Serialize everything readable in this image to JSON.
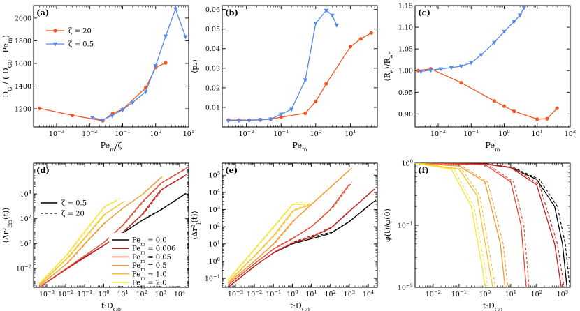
{
  "colors": {
    "zeta20": "#ee5522",
    "zeta05": "#5588e8",
    "pe": [
      "#000000",
      "#c41e1e",
      "#e34a30",
      "#f39a2e",
      "#fbc02d",
      "#f6e53a"
    ]
  },
  "chart_data": [
    {
      "panel": "(a)",
      "type": "line",
      "xscale": "log",
      "xlim": [
        0.0002,
        10
      ],
      "ylim": [
        1040,
        2110
      ],
      "xlabel": "Pe_m/ζ",
      "ylabel": "D_G / ( D_G0 · Pe_m)",
      "xticks": [
        0.001,
        0.01,
        0.1,
        1,
        10
      ],
      "xticklabels": [
        "10^-3",
        "10^-2",
        "10^-1",
        "10^0",
        "10^1"
      ],
      "yticks": [
        1200,
        1400,
        1600,
        1800,
        2000
      ],
      "yticklabels": [
        "1200",
        "1400",
        "1600",
        "1800",
        "2000"
      ],
      "legend": [
        "ζ = 20",
        "ζ = 0.5"
      ],
      "series": [
        {
          "name": "ζ = 20",
          "marker": "circle",
          "x": [
            0.0003,
            0.003,
            0.025,
            0.05,
            0.1,
            0.5,
            1,
            2
          ],
          "y": [
            1205,
            1142,
            1095,
            1160,
            1195,
            1385,
            1565,
            1605
          ]
        },
        {
          "name": "ζ = 0.5",
          "marker": "triangle",
          "x": [
            0.012,
            0.024,
            0.048,
            0.1,
            0.2,
            0.5,
            1,
            2,
            4,
            8
          ],
          "y": [
            1125,
            1100,
            1140,
            1192,
            1255,
            1350,
            1580,
            1840,
            2080,
            1835
          ]
        }
      ]
    },
    {
      "panel": "(b)",
      "type": "line",
      "xscale": "log",
      "xlim": [
        0.002,
        60
      ],
      "ylim": [
        0,
        0.062
      ],
      "xlabel": "Pe_m",
      "ylabel": "⟨p₂⟩",
      "xticks": [
        0.01,
        0.1,
        1,
        10
      ],
      "xticklabels": [
        "10^-2",
        "10^-1",
        "10^0",
        "10^1"
      ],
      "yticks": [
        0.01,
        0.02,
        0.03,
        0.04,
        0.05,
        0.06
      ],
      "yticklabels": [
        "0.01",
        "0.02",
        "0.03",
        "0.04",
        "0.05",
        "0.06"
      ],
      "series": [
        {
          "name": "ζ = 20",
          "marker": "circle",
          "x": [
            0.003,
            0.006,
            0.012,
            0.025,
            0.05,
            0.1,
            0.5,
            1,
            2,
            10,
            20,
            40
          ],
          "y": [
            0.0035,
            0.0035,
            0.0035,
            0.0037,
            0.004,
            0.005,
            0.007,
            0.013,
            0.022,
            0.041,
            0.045,
            0.048
          ]
        },
        {
          "name": "ζ = 0.5",
          "marker": "triangle",
          "x": [
            0.003,
            0.006,
            0.012,
            0.025,
            0.05,
            0.1,
            0.2,
            0.5,
            1,
            2,
            3,
            4
          ],
          "y": [
            0.0032,
            0.0032,
            0.0034,
            0.0036,
            0.004,
            0.0065,
            0.009,
            0.024,
            0.053,
            0.0595,
            0.057,
            0.052
          ]
        }
      ]
    },
    {
      "panel": "(c)",
      "type": "line",
      "xscale": "log",
      "xlim": [
        0.002,
        100
      ],
      "ylim": [
        0.87,
        1.15
      ],
      "xlabel": "Pe_m",
      "ylabel": "⟨R_e⟩/R_e0",
      "xticks": [
        0.01,
        0.1,
        1,
        10,
        100
      ],
      "xticklabels": [
        "10^-2",
        "10^-1",
        "10^0",
        "10^1",
        "10^2"
      ],
      "yticks": [
        0.9,
        0.95,
        1.0,
        1.05,
        1.1,
        1.15
      ],
      "yticklabels": [
        "0.90",
        "0.95",
        "1.00",
        "1.05",
        "1.10",
        "1.15"
      ],
      "series": [
        {
          "name": "ζ = 20",
          "marker": "circle",
          "x": [
            0.0025,
            0.006,
            0.05,
            0.5,
            1,
            2,
            10,
            20,
            40
          ],
          "y": [
            1.0,
            1.004,
            0.972,
            0.93,
            0.918,
            0.906,
            0.888,
            0.889,
            0.913
          ]
        },
        {
          "name": "ζ = 0.5",
          "marker": "triangle",
          "x": [
            0.003,
            0.006,
            0.012,
            0.025,
            0.05,
            0.1,
            0.2,
            0.5,
            1,
            2,
            3,
            4
          ],
          "y": [
            0.998,
            1.001,
            1.004,
            1.007,
            1.01,
            1.018,
            1.036,
            1.065,
            1.09,
            1.113,
            1.128,
            1.145
          ]
        }
      ]
    },
    {
      "panel": "(d)",
      "type": "line",
      "xscale": "log",
      "yscale": "log",
      "xlim": [
        0.0002,
        30000
      ],
      "ylim": [
        0.0003,
        3000000
      ],
      "xlabel": "t·D_G0",
      "ylabel": "⟨Δr²_cm(t)⟩",
      "xticks": [
        0.001,
        0.01,
        0.1,
        1,
        10,
        100,
        1000,
        10000
      ],
      "xticklabels": [
        "10^-3",
        "10^-2",
        "10^-1",
        "10^0",
        "10^1",
        "10^2",
        "10^3",
        "10^4"
      ],
      "yticks": [
        0.01,
        1,
        100,
        10000
      ],
      "yticklabels": [
        "10^-2",
        "10^0",
        "10^2",
        "10^4"
      ],
      "legend_styles": [
        "ζ = 0.5",
        "ζ = 20"
      ],
      "legend_pe": [
        "Pe_m = 0.0",
        "Pe_m = 0.006",
        "Pe_m = 0.05",
        "Pe_m = 0.5",
        "Pe_m = 1.0",
        "Pe_m = 2.0"
      ],
      "series": [
        {
          "name": "Pe_m = 0.0",
          "x": [
            0.0004,
            0.001,
            0.01,
            0.1,
            1,
            10,
            100,
            1000,
            20000
          ],
          "y": [
            0.0003,
            0.0008,
            0.008,
            0.08,
            0.7,
            7,
            70,
            500,
            10000
          ]
        },
        {
          "name": "Pe_m = 0.006",
          "x": [
            0.0004,
            0.01,
            1,
            10,
            100,
            1000,
            20000
          ],
          "y": [
            0.0003,
            0.008,
            0.7,
            8,
            200,
            20000,
            300000
          ]
        },
        {
          "name": "Pe_m = 0.05",
          "x": [
            0.0004,
            0.01,
            1,
            10,
            100,
            1000,
            20000
          ],
          "y": [
            0.0003,
            0.009,
            1.2,
            30,
            2000,
            70000,
            1000000
          ]
        },
        {
          "name": "Pe_m = 0.5",
          "x": [
            0.0004,
            0.01,
            0.1,
            1,
            10,
            100,
            1000
          ],
          "y": [
            0.0004,
            0.02,
            1,
            40,
            700,
            8000,
            200000
          ]
        },
        {
          "name": "Pe_m = 1.0",
          "x": [
            0.0004,
            0.01,
            0.1,
            1,
            10
          ],
          "y": [
            0.0005,
            0.05,
            3,
            200,
            2000
          ]
        },
        {
          "name": "Pe_m = 2.0",
          "x": [
            0.0004,
            0.01,
            0.1,
            1,
            5
          ],
          "y": [
            0.0006,
            0.1,
            10,
            800,
            3000
          ]
        }
      ]
    },
    {
      "panel": "(e)",
      "type": "line",
      "xscale": "log",
      "yscale": "log",
      "xlim": [
        0.0002,
        30000
      ],
      "ylim": [
        0.03,
        500000
      ],
      "xlabel": "t·D_G0",
      "ylabel": "⟨Δr²_i(t)⟩",
      "xticks": [
        0.001,
        0.01,
        0.1,
        1,
        10,
        100,
        1000,
        10000
      ],
      "xticklabels": [
        "10^-3",
        "10^-2",
        "10^-1",
        "10^0",
        "10^1",
        "10^2",
        "10^3",
        "10^4"
      ],
      "yticks": [
        0.1,
        1,
        10,
        100,
        1000,
        10000,
        100000
      ],
      "yticklabels": [
        "10^-1",
        "10^0",
        "10^1",
        "10^2",
        "10^3",
        "10^4",
        "10^5"
      ],
      "series": [
        {
          "name": "Pe_m = 0.0",
          "x": [
            0.0004,
            0.01,
            0.1,
            1,
            10,
            100,
            1000,
            20000
          ],
          "y": [
            0.03,
            0.5,
            3,
            10,
            20,
            40,
            200,
            3000
          ]
        },
        {
          "name": "Pe_m = 0.006",
          "x": [
            0.0004,
            0.01,
            0.1,
            1,
            10,
            100,
            1000,
            20000
          ],
          "y": [
            0.03,
            0.5,
            3,
            11,
            25,
            80,
            800,
            15000
          ]
        },
        {
          "name": "Pe_m = 0.05",
          "x": [
            0.0004,
            0.01,
            0.1,
            1,
            10,
            100,
            1000
          ],
          "y": [
            0.04,
            0.7,
            5,
            20,
            100,
            1000,
            30000
          ]
        },
        {
          "name": "Pe_m = 0.5",
          "x": [
            0.0004,
            0.01,
            0.1,
            1,
            10,
            100,
            1000
          ],
          "y": [
            0.05,
            1,
            10,
            200,
            2000,
            20000,
            200000
          ]
        },
        {
          "name": "Pe_m = 1.0",
          "x": [
            0.0004,
            0.01,
            0.1,
            1,
            10
          ],
          "y": [
            0.06,
            2,
            30,
            800,
            2000
          ]
        },
        {
          "name": "Pe_m = 2.0",
          "x": [
            0.0004,
            0.01,
            0.1,
            1,
            5
          ],
          "y": [
            0.08,
            5,
            100,
            2000,
            2000
          ]
        }
      ]
    },
    {
      "panel": "(f)",
      "type": "line",
      "xscale": "log",
      "yscale": "log",
      "xlim": [
        0.002,
        2000
      ],
      "ylim": [
        0.01,
        1
      ],
      "xlabel": "t·D_G0",
      "ylabel": "φ(t)/φ(0)",
      "xticks": [
        0.01,
        0.1,
        1,
        10,
        100,
        1000
      ],
      "xticklabels": [
        "10^-2",
        "10^-1",
        "10^0",
        "10^1",
        "10^2",
        "10^3"
      ],
      "yticks": [
        0.01,
        0.1,
        1
      ],
      "yticklabels": [
        "10^-2",
        "10^-1",
        "10^0"
      ],
      "series": [
        {
          "name": "Pe_m = 0.0",
          "x": [
            0.002,
            1,
            10,
            100,
            500,
            1000,
            1500
          ],
          "y": [
            1,
            0.97,
            0.85,
            0.55,
            0.2,
            0.05,
            0.01
          ]
        },
        {
          "name": "Pe_m = 0.006",
          "x": [
            0.002,
            1,
            10,
            100,
            500,
            900
          ],
          "y": [
            1,
            0.97,
            0.85,
            0.45,
            0.05,
            0.01
          ]
        },
        {
          "name": "Pe_m = 0.05",
          "x": [
            0.002,
            1,
            10,
            25,
            40
          ],
          "y": [
            1,
            0.95,
            0.5,
            0.1,
            0.01
          ]
        },
        {
          "name": "Pe_m = 0.5",
          "x": [
            0.002,
            0.1,
            1,
            4,
            6
          ],
          "y": [
            1,
            0.9,
            0.5,
            0.05,
            0.01
          ]
        },
        {
          "name": "Pe_m = 1.0",
          "x": [
            0.002,
            0.1,
            0.5,
            1.5,
            2
          ],
          "y": [
            1,
            0.8,
            0.3,
            0.02,
            0.01
          ]
        },
        {
          "name": "Pe_m = 2.0",
          "x": [
            0.002,
            0.05,
            0.3,
            0.8,
            1
          ],
          "y": [
            1,
            0.8,
            0.2,
            0.02,
            0.01
          ]
        }
      ]
    }
  ]
}
